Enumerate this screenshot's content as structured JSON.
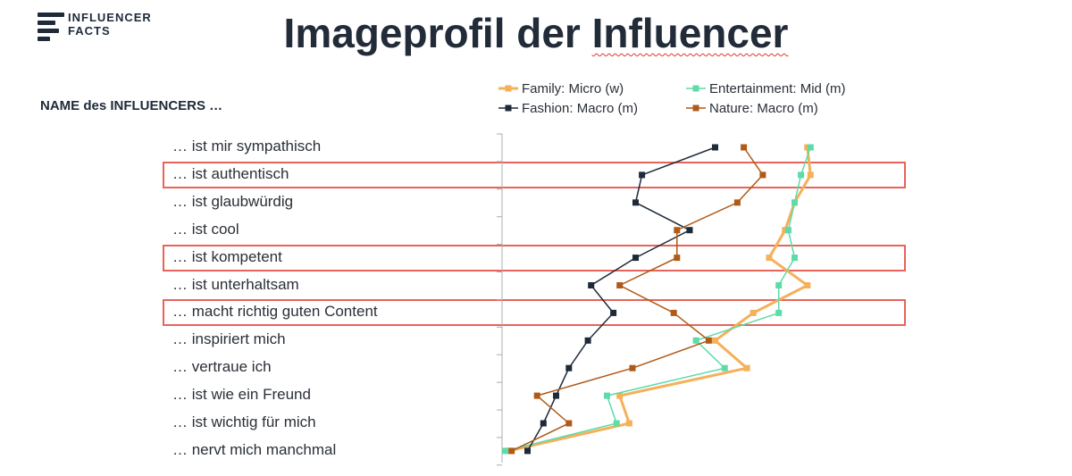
{
  "header": {
    "logo_line1": "INFLUENCER",
    "logo_line2": "FACTS",
    "title_part1": "Imageprofil der ",
    "title_part2": "Influencer"
  },
  "chart_data": {
    "type": "line",
    "title": "Imageprofil der Influencer",
    "ylabel": "NAME des INFLUENCERS …",
    "categories": [
      "… ist mir sympathisch",
      "… ist authentisch",
      "… ist glaubwürdig",
      "… ist cool",
      "… ist kompetent",
      "… ist unterhaltsam",
      "… macht richtig guten Content",
      "… inspiriert mich",
      "… vertraue ich",
      "… ist wie ein Freund",
      "… ist wichtig für mich",
      "… nervt mich manchmal"
    ],
    "xlim": [
      0,
      1
    ],
    "grid": false,
    "legend_position": "top",
    "highlighted_categories": [
      1,
      4,
      6
    ],
    "series": [
      {
        "name": "Family: Micro (w)",
        "color": "#f5b05a",
        "values": [
          0.96,
          0.97,
          0.92,
          0.89,
          0.84,
          0.96,
          0.79,
          0.67,
          0.77,
          0.37,
          0.4,
          0.02
        ]
      },
      {
        "name": "Entertainment: Mid (m)",
        "color": "#5ddba8",
        "values": [
          0.97,
          0.94,
          0.92,
          0.9,
          0.92,
          0.87,
          0.87,
          0.61,
          0.7,
          0.33,
          0.36,
          0.01
        ]
      },
      {
        "name": "Fashion: Macro (m)",
        "color": "#1e2a3a",
        "values": [
          0.67,
          0.44,
          0.42,
          0.59,
          0.42,
          0.28,
          0.35,
          0.27,
          0.21,
          0.17,
          0.13,
          0.08
        ]
      },
      {
        "name": "Nature: Macro (m)",
        "color": "#b05a18",
        "values": [
          0.76,
          0.82,
          0.74,
          0.55,
          0.55,
          0.37,
          0.54,
          0.65,
          0.41,
          0.11,
          0.21,
          0.03
        ]
      }
    ]
  }
}
